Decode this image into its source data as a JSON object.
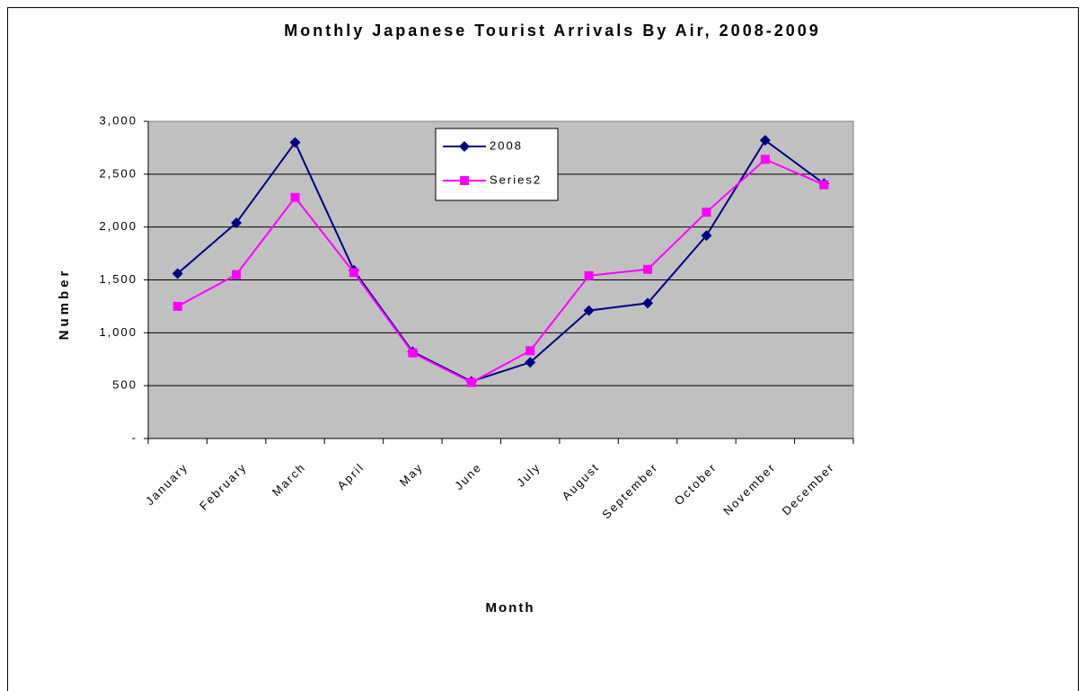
{
  "chart_data": {
    "type": "line",
    "title": "Monthly Japanese Tourist Arrivals By Air, 2008-2009",
    "x_label": "Month",
    "y_label": "Number",
    "categories": [
      "January",
      "February",
      "March",
      "April",
      "May",
      "June",
      "July",
      "August",
      "September",
      "October",
      "November",
      "December"
    ],
    "series": [
      {
        "name": "2008",
        "color": "#000080",
        "marker": "diamond",
        "values": [
          1560,
          2040,
          2800,
          1590,
          820,
          540,
          720,
          1210,
          1280,
          1920,
          2820,
          2410
        ]
      },
      {
        "name": "Series2",
        "color": "#ff00ff",
        "marker": "square",
        "values": [
          1250,
          1550,
          2280,
          1570,
          810,
          530,
          830,
          1540,
          1600,
          2140,
          2640,
          2400
        ]
      }
    ],
    "ylim": [
      0,
      3000
    ],
    "yticks": [
      {
        "value": 0,
        "label": "-"
      },
      500,
      {
        "value": 1000,
        "label": "1,000"
      },
      {
        "value": 1500,
        "label": "1,500"
      },
      {
        "value": 2000,
        "label": "2,000"
      },
      {
        "value": 2500,
        "label": "2,500"
      },
      {
        "value": 3000,
        "label": "3,000"
      }
    ],
    "grid": true,
    "legend": "top"
  }
}
